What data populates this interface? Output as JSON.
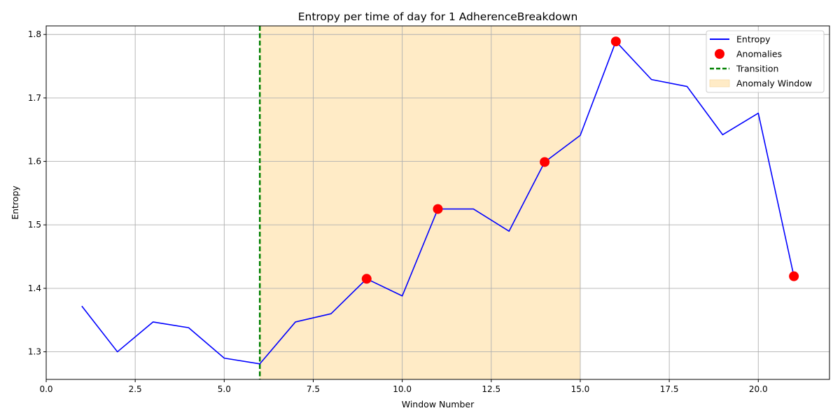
{
  "chart_data": {
    "type": "line",
    "title": "Entropy per time of day for 1 AdherenceBreakdown",
    "xlabel": "Window Number",
    "ylabel": "Entropy",
    "xlim": [
      0,
      22.0
    ],
    "ylim": [
      1.2565,
      1.8135
    ],
    "xticks": [
      0.0,
      2.5,
      5.0,
      7.5,
      10.0,
      12.5,
      15.0,
      17.5,
      20.0
    ],
    "xtick_labels": [
      "0.0",
      "2.5",
      "5.0",
      "7.5",
      "10.0",
      "12.5",
      "15.0",
      "17.5",
      "20.0"
    ],
    "yticks": [
      1.3,
      1.4,
      1.5,
      1.6,
      1.7,
      1.8
    ],
    "ytick_labels": [
      "1.3",
      "1.4",
      "1.5",
      "1.6",
      "1.7",
      "1.8"
    ],
    "grid": true,
    "legend_position": "top-right",
    "series": [
      {
        "name": "Entropy",
        "color": "#0000ff",
        "x": [
          1,
          2,
          3,
          4,
          5,
          6,
          7,
          8,
          9,
          10,
          11,
          12,
          13,
          14,
          15,
          16,
          17,
          18,
          19,
          20,
          21
        ],
        "values": [
          1.372,
          1.3,
          1.347,
          1.338,
          1.29,
          1.281,
          1.347,
          1.36,
          1.415,
          1.388,
          1.525,
          1.525,
          1.49,
          1.599,
          1.641,
          1.789,
          1.729,
          1.718,
          1.642,
          1.676,
          1.419
        ]
      }
    ],
    "anomalies": {
      "name": "Anomalies",
      "color": "#ff0000",
      "x": [
        9,
        11,
        14,
        16,
        21
      ],
      "values": [
        1.415,
        1.525,
        1.599,
        1.789,
        1.419
      ]
    },
    "transition": {
      "name": "Transition",
      "color": "#008000",
      "x": 6
    },
    "anomaly_window": {
      "name": "Anomaly Window",
      "color": "#ffebc6",
      "x_start": 6,
      "x_end": 15
    }
  }
}
